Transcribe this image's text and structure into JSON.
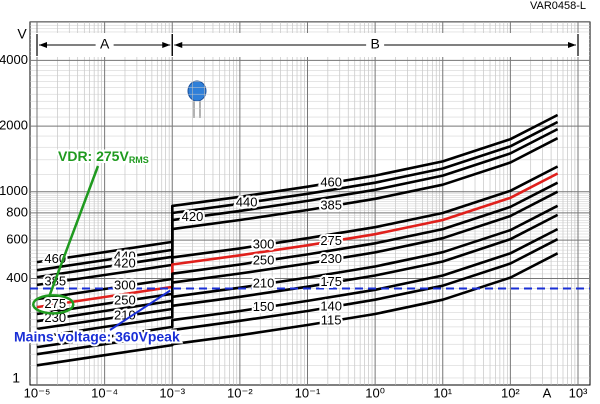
{
  "chart_data": {
    "type": "line",
    "figure_id": "VAR0458-L",
    "y_unit": "V",
    "x_unit": "A",
    "ybreak_label": "1",
    "x": [
      1e-05,
      0.0001,
      0.001,
      0.001,
      0.01,
      0.1,
      1,
      10,
      100,
      500
    ],
    "xscale": "log",
    "yscale": "log",
    "xlim": [
      1e-05,
      1000
    ],
    "ylim": [
      130,
      6000
    ],
    "xticks": [
      {
        "value": 1e-05,
        "label": "10⁻⁵"
      },
      {
        "value": 0.0001,
        "label": "10⁻⁴"
      },
      {
        "value": 0.001,
        "label": "10⁻³"
      },
      {
        "value": 0.01,
        "label": "10⁻²"
      },
      {
        "value": 0.1,
        "label": "10⁻¹"
      },
      {
        "value": 1,
        "label": "10⁰"
      },
      {
        "value": 10,
        "label": "10¹"
      },
      {
        "value": 100,
        "label": "10²"
      },
      {
        "value": 1000,
        "label": "10³"
      }
    ],
    "yticks": [
      400,
      600,
      800,
      1000,
      2000,
      4000
    ],
    "grid": true,
    "regions": [
      {
        "name": "A",
        "from": 1e-05,
        "to": 0.001
      },
      {
        "name": "B",
        "from": 0.001,
        "to": 1000
      }
    ],
    "mains_voltage": 360,
    "mains_label": "Mains voltage: 360Vpeak",
    "mains_color": "#1a2fd6",
    "vdr_label": "VDR: 275V",
    "vdr_sub": "RMS",
    "vdr_color": "#1f9a1f",
    "series": [
      {
        "name": "460",
        "color": "#000000",
        "values": [
          476,
          529,
          589,
          861,
          948,
          1054,
          1186,
          1377,
          1741,
          2249
        ]
      },
      {
        "name": "440",
        "color": "#000000",
        "values": [
          437,
          486,
          541,
          799,
          880,
          978,
          1100,
          1278,
          1615,
          2087
        ]
      },
      {
        "name": "420",
        "color": "#000000",
        "values": [
          406,
          452,
          503,
          741,
          817,
          908,
          1021,
          1186,
          1499,
          1937
        ]
      },
      {
        "name": "385",
        "color": "#000000",
        "values": [
          374,
          415,
          462,
          674,
          742,
          825,
          928,
          1077,
          1362,
          1760
        ]
      },
      {
        "name": "300",
        "color": "#000000",
        "values": [
          322,
          358,
          398,
          500,
          550,
          612,
          688,
          799,
          1010,
          1305
        ]
      },
      {
        "name": "275",
        "color": "#e0201c",
        "values": [
          296,
          329,
          366,
          464,
          511,
          568,
          639,
          742,
          938,
          1212
        ]
      },
      {
        "name": "250",
        "color": "#000000",
        "values": [
          275,
          306,
          340,
          421,
          464,
          516,
          580,
          674,
          852,
          1100
        ]
      },
      {
        "name": "230",
        "color": "#000000",
        "values": [
          255,
          284,
          316,
          383,
          422,
          469,
          527,
          612,
          774,
          1000
        ]
      },
      {
        "name": "210",
        "color": "#000000",
        "values": [
          235,
          261,
          290,
          330,
          363,
          404,
          454,
          528,
          667,
          862
        ]
      },
      {
        "name": "175",
        "color": "#000000",
        "values": [
          215,
          240,
          266,
          300,
          330,
          367,
          413,
          479,
          606,
          783
        ]
      },
      {
        "name": "150",
        "color": "#000000",
        "values": [
          194,
          215,
          240,
          258,
          284,
          316,
          355,
          413,
          522,
          674
        ]
      },
      {
        "name": "140",
        "color": "#000000",
        "values": [
          180,
          200,
          223,
          232,
          256,
          284,
          320,
          371,
          469,
          606
        ]
      },
      {
        "name": "115",
        "color": "#000000",
        "values": [
          160,
          178,
          198,
          200,
          220,
          245,
          275,
          320,
          404,
          522
        ]
      }
    ]
  }
}
